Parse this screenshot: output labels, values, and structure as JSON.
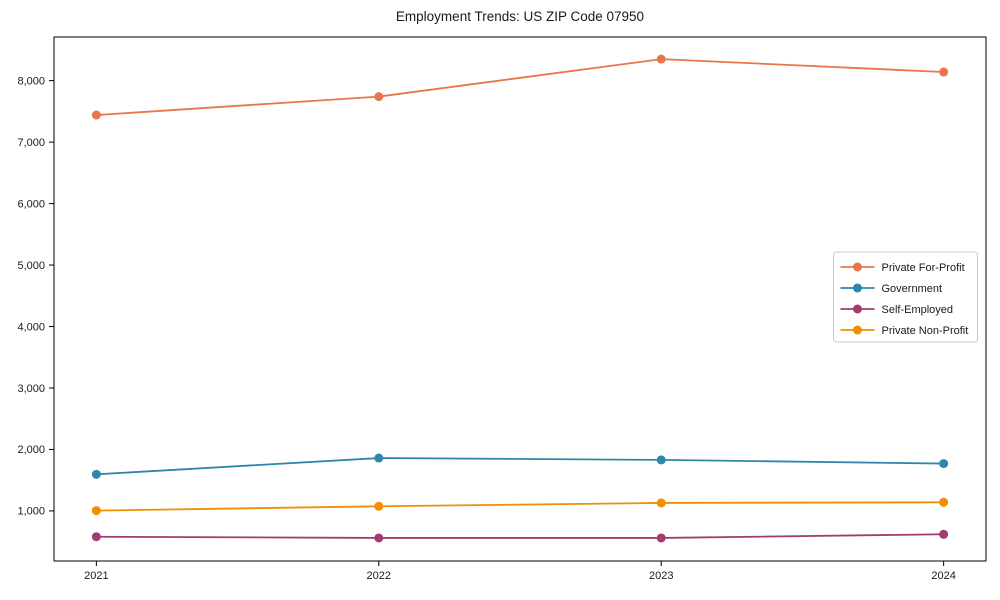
{
  "chart_data": {
    "type": "line",
    "title": "Employment Trends: US ZIP Code 07950",
    "xlabel": "",
    "ylabel": "",
    "x": [
      2021,
      2022,
      2023,
      2024
    ],
    "x_tick_labels": [
      "2021",
      "2022",
      "2023",
      "2024"
    ],
    "series": [
      {
        "name": "Private For-Profit",
        "color": "#E8764B",
        "values": [
          7440,
          7740,
          8350,
          8140
        ]
      },
      {
        "name": "Government",
        "color": "#2E86AB",
        "values": [
          1595,
          1860,
          1830,
          1770
        ]
      },
      {
        "name": "Self-Employed",
        "color": "#A23B72",
        "values": [
          580,
          560,
          560,
          620
        ]
      },
      {
        "name": "Private Non-Profit",
        "color": "#F18F01",
        "values": [
          1005,
          1075,
          1130,
          1140
        ]
      }
    ],
    "yticks": [
      1000,
      2000,
      3000,
      4000,
      5000,
      6000,
      7000,
      8000
    ],
    "ytick_labels": [
      "1,000",
      "2,000",
      "3,000",
      "4,000",
      "5,000",
      "6,000",
      "7,000",
      "8,000"
    ],
    "xlim": [
      2020.85,
      2024.15
    ],
    "ylim": [
      185,
      8710
    ],
    "grid": false,
    "legend_position": "center-right",
    "axis_color": "#000000",
    "legend_border_color": "#cccccc",
    "legend_background": "#ffffff"
  }
}
